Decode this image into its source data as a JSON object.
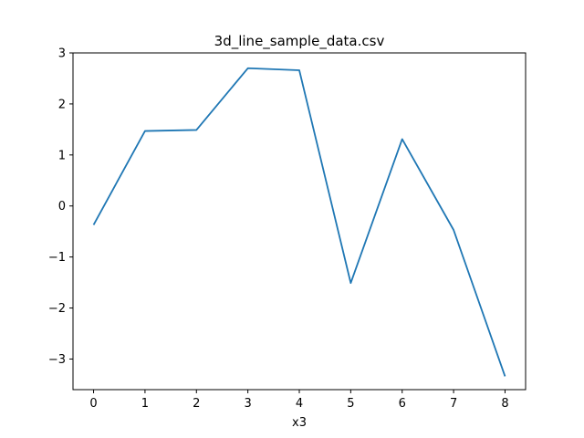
{
  "chart_data": {
    "type": "line",
    "title": "3d_line_sample_data.csv",
    "xlabel": "x3",
    "ylabel": "",
    "xlim": [
      -0.4,
      8.4
    ],
    "ylim": [
      -3.6,
      3.0
    ],
    "xticks": [
      0,
      1,
      2,
      3,
      4,
      5,
      6,
      7,
      8
    ],
    "xtick_labels": [
      "0",
      "1",
      "2",
      "3",
      "4",
      "5",
      "6",
      "7",
      "8"
    ],
    "yticks": [
      -3,
      -2,
      -1,
      0,
      1,
      2,
      3
    ],
    "ytick_labels": [
      "−3",
      "−2",
      "−1",
      "0",
      "1",
      "2",
      "3"
    ],
    "grid": false,
    "series": [
      {
        "color": "#1f77b4",
        "x": [
          0,
          1,
          2,
          3,
          4,
          5,
          6,
          7,
          8
        ],
        "y": [
          -0.37,
          1.47,
          1.49,
          2.7,
          2.66,
          -1.51,
          1.31,
          -0.47,
          -3.34
        ]
      }
    ]
  }
}
